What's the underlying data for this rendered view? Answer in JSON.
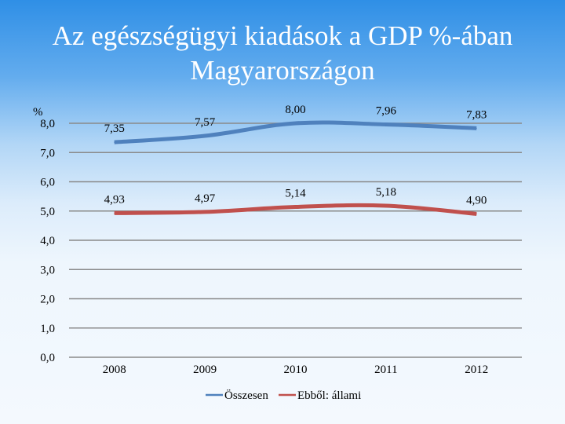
{
  "title_line1": "Az egészségügyi kiadások a GDP %-ában",
  "title_line2": "Magyarországon",
  "chart_data": {
    "type": "line",
    "title": "Az egészségügyi kiadások a GDP %-ában Magyarországon",
    "ylabel": "%",
    "xlabel": "",
    "categories": [
      "2008",
      "2009",
      "2010",
      "2011",
      "2012"
    ],
    "y_ticks": [
      "0,0",
      "1,0",
      "2,0",
      "3,0",
      "4,0",
      "5,0",
      "6,0",
      "7,0",
      "8,0"
    ],
    "ylim": [
      0,
      8
    ],
    "grid": true,
    "legend_position": "bottom",
    "series": [
      {
        "name": "Összesen",
        "values": [
          7.35,
          7.57,
          8.0,
          7.96,
          7.83
        ],
        "labels": [
          "7,35",
          "7,57",
          "8,00",
          "7,96",
          "7,83"
        ],
        "color": "#4f81bd"
      },
      {
        "name": "Ebből: állami",
        "values": [
          4.93,
          4.97,
          5.14,
          5.18,
          4.9
        ],
        "labels": [
          "4,93",
          "4,97",
          "5,14",
          "5,18",
          "4,90"
        ],
        "color": "#c0504d"
      }
    ]
  }
}
